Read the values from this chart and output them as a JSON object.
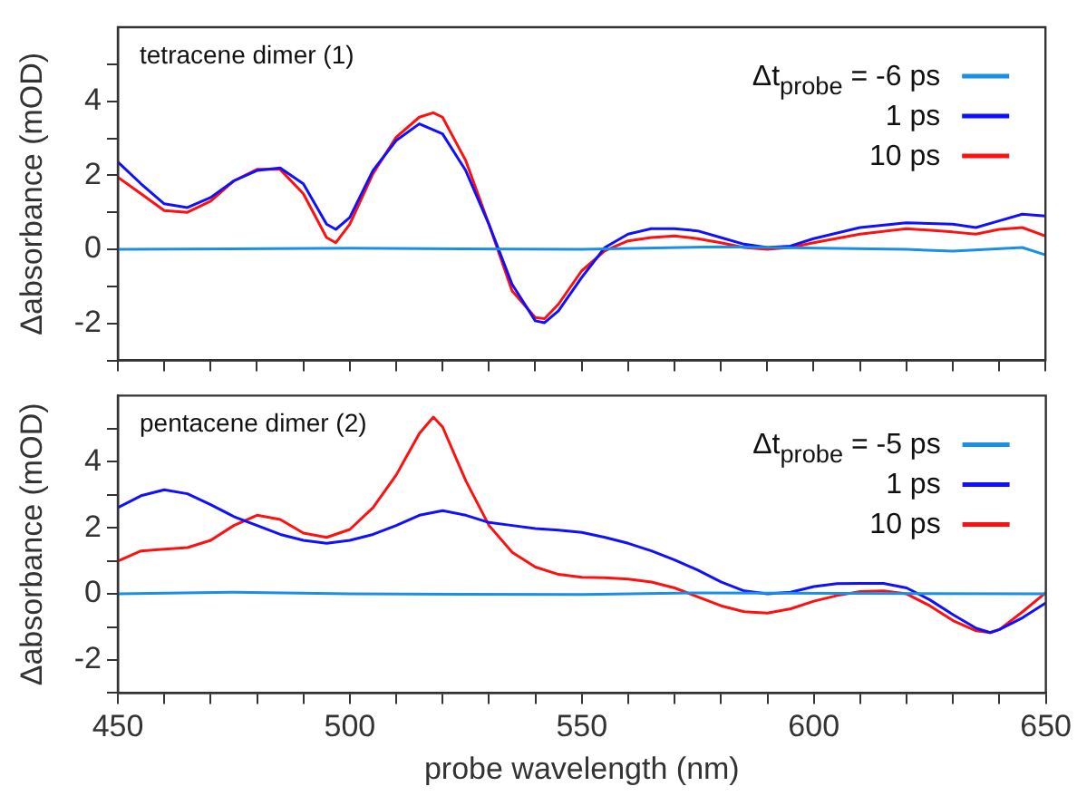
{
  "chart_data": [
    {
      "type": "line",
      "title": "tetracene dimer (1)",
      "ylabel": "Δabsorbance (mOD)",
      "xlim": [
        450,
        650
      ],
      "ylim": [
        -3,
        6
      ],
      "tick_labels": "y",
      "legend": "top right",
      "grid": false,
      "marker": "none",
      "line_style": "solid",
      "xticks": [
        450,
        {
          "value": 460,
          "label": null
        },
        {
          "value": 470,
          "label": null
        },
        {
          "value": 480,
          "label": null
        },
        {
          "value": 490,
          "label": null
        },
        500,
        {
          "value": 510,
          "label": null
        },
        {
          "value": 520,
          "label": null
        },
        {
          "value": 530,
          "label": null
        },
        {
          "value": 540,
          "label": null
        },
        550,
        {
          "value": 560,
          "label": null
        },
        {
          "value": 570,
          "label": null
        },
        {
          "value": 580,
          "label": null
        },
        {
          "value": 590,
          "label": null
        },
        600,
        {
          "value": 610,
          "label": null
        },
        {
          "value": 620,
          "label": null
        },
        {
          "value": 630,
          "label": null
        },
        {
          "value": 640,
          "label": null
        },
        650
      ],
      "yticks": [
        {
          "value": -3,
          "label": null
        },
        -2,
        {
          "value": -1,
          "label": null
        },
        0,
        {
          "value": 1,
          "label": null
        },
        2,
        {
          "value": 3,
          "label": null
        },
        4,
        {
          "value": 5,
          "label": null
        }
      ],
      "series": [
        {
          "name": "Δt$_{probe}$ = -6 ps",
          "color": "#1a8fe8",
          "x": [
            450,
            500,
            550,
            580,
            620,
            630,
            645,
            650
          ],
          "values": [
            0,
            0.03,
            0,
            0.07,
            0,
            -0.05,
            0.05,
            -0.15
          ]
        },
        {
          "name": "1 ps",
          "color": "#1010ff",
          "x": [
            450,
            455,
            460,
            465,
            470,
            475,
            480,
            485,
            490,
            495,
            497,
            500,
            505,
            510,
            515,
            520,
            525,
            530,
            535,
            540,
            542,
            545,
            550,
            555,
            560,
            565,
            570,
            575,
            580,
            585,
            590,
            595,
            600,
            610,
            620,
            630,
            635,
            640,
            645,
            650
          ],
          "values": [
            2.36,
            1.77,
            1.23,
            1.13,
            1.4,
            1.85,
            2.13,
            2.2,
            1.77,
            0.68,
            0.54,
            0.86,
            2.13,
            2.94,
            3.39,
            3.12,
            2.13,
            0.68,
            -0.94,
            -1.93,
            -1.98,
            -1.66,
            -0.76,
            0.05,
            0.41,
            0.56,
            0.56,
            0.5,
            0.32,
            0.14,
            0.05,
            0.09,
            0.29,
            0.59,
            0.72,
            0.68,
            0.59,
            0.77,
            0.95,
            0.9
          ]
        },
        {
          "name": "10 ps",
          "color": "#ff1010",
          "x": [
            450,
            455,
            460,
            465,
            470,
            475,
            480,
            485,
            490,
            495,
            497,
            500,
            505,
            510,
            515,
            518,
            520,
            525,
            530,
            535,
            540,
            542,
            545,
            550,
            555,
            560,
            565,
            570,
            575,
            580,
            585,
            590,
            595,
            600,
            610,
            620,
            630,
            635,
            640,
            645,
            650
          ],
          "values": [
            1.95,
            1.5,
            1.05,
            1.0,
            1.3,
            1.85,
            2.16,
            2.16,
            1.5,
            0.32,
            0.18,
            0.68,
            2.04,
            3.03,
            3.57,
            3.69,
            3.57,
            2.4,
            0.68,
            -1.12,
            -1.84,
            -1.87,
            -1.48,
            -0.58,
            -0.04,
            0.23,
            0.32,
            0.36,
            0.29,
            0.18,
            0.05,
            0,
            0.05,
            0.18,
            0.41,
            0.56,
            0.47,
            0.41,
            0.54,
            0.59,
            0.36
          ]
        }
      ]
    },
    {
      "type": "line",
      "title": "pentacene dimer (2)",
      "xlabel": "probe wavelength (nm)",
      "ylabel": "Δabsorbance (mOD)",
      "xlim": [
        450,
        650
      ],
      "ylim": [
        -3,
        6
      ],
      "legend": "top right",
      "grid": false,
      "marker": "none",
      "line_style": "solid",
      "xticks": [
        450,
        {
          "value": 460,
          "label": null
        },
        {
          "value": 470,
          "label": null
        },
        {
          "value": 480,
          "label": null
        },
        {
          "value": 490,
          "label": null
        },
        500,
        {
          "value": 510,
          "label": null
        },
        {
          "value": 520,
          "label": null
        },
        {
          "value": 530,
          "label": null
        },
        {
          "value": 540,
          "label": null
        },
        550,
        {
          "value": 560,
          "label": null
        },
        {
          "value": 570,
          "label": null
        },
        {
          "value": 580,
          "label": null
        },
        {
          "value": 590,
          "label": null
        },
        600,
        {
          "value": 610,
          "label": null
        },
        {
          "value": 620,
          "label": null
        },
        {
          "value": 630,
          "label": null
        },
        {
          "value": 640,
          "label": null
        },
        650
      ],
      "yticks": [
        {
          "value": -3,
          "label": null
        },
        -2,
        {
          "value": -1,
          "label": null
        },
        0,
        {
          "value": 1,
          "label": null
        },
        2,
        {
          "value": 3,
          "label": null
        },
        4,
        {
          "value": 5,
          "label": null
        }
      ],
      "series": [
        {
          "name": "Δt$_{probe}$ = -5 ps",
          "color": "#1a8fe8",
          "x": [
            450,
            475,
            500,
            550,
            575,
            650
          ],
          "values": [
            0,
            0.05,
            0,
            -0.02,
            0.03,
            0
          ]
        },
        {
          "name": "1 ps",
          "color": "#1010ff",
          "x": [
            450,
            455,
            460,
            465,
            470,
            475,
            480,
            485,
            490,
            495,
            500,
            505,
            510,
            515,
            520,
            525,
            530,
            535,
            540,
            545,
            550,
            555,
            560,
            565,
            570,
            575,
            580,
            585,
            590,
            595,
            600,
            605,
            610,
            615,
            620,
            625,
            630,
            635,
            638,
            640,
            645,
            650
          ],
          "values": [
            2.61,
            2.97,
            3.15,
            3.03,
            2.7,
            2.34,
            2.07,
            1.8,
            1.62,
            1.53,
            1.62,
            1.8,
            2.07,
            2.38,
            2.52,
            2.38,
            2.16,
            2.07,
            1.98,
            1.93,
            1.86,
            1.71,
            1.53,
            1.3,
            1.03,
            0.72,
            0.36,
            0.09,
            0,
            0.05,
            0.22,
            0.31,
            0.32,
            0.32,
            0.18,
            -0.18,
            -0.63,
            -1.04,
            -1.17,
            -1.08,
            -0.72,
            -0.27
          ]
        },
        {
          "name": "10 ps",
          "color": "#ff1010",
          "x": [
            450,
            455,
            460,
            465,
            470,
            475,
            480,
            485,
            490,
            495,
            500,
            505,
            510,
            515,
            518,
            520,
            525,
            530,
            535,
            540,
            545,
            550,
            555,
            560,
            565,
            570,
            575,
            580,
            585,
            590,
            595,
            600,
            605,
            610,
            615,
            620,
            625,
            630,
            635,
            638,
            640,
            645,
            650
          ],
          "values": [
            0.99,
            1.3,
            1.35,
            1.4,
            1.62,
            2.07,
            2.38,
            2.25,
            1.84,
            1.71,
            1.95,
            2.61,
            3.6,
            4.86,
            5.35,
            5.05,
            3.42,
            2.07,
            1.26,
            0.81,
            0.59,
            0.5,
            0.49,
            0.45,
            0.36,
            0.18,
            -0.09,
            -0.36,
            -0.54,
            -0.58,
            -0.45,
            -0.22,
            -0.05,
            0.07,
            0.09,
            0,
            -0.36,
            -0.81,
            -1.12,
            -1.17,
            -1.08,
            -0.54,
            0.04
          ]
        }
      ]
    }
  ]
}
